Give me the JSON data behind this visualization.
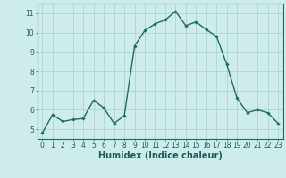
{
  "x": [
    0,
    1,
    2,
    3,
    4,
    5,
    6,
    7,
    8,
    9,
    10,
    11,
    12,
    13,
    14,
    15,
    16,
    17,
    18,
    19,
    20,
    21,
    22,
    23
  ],
  "y": [
    4.8,
    5.75,
    5.4,
    5.5,
    5.55,
    6.5,
    6.1,
    5.3,
    5.7,
    9.3,
    10.1,
    10.45,
    10.65,
    11.1,
    10.35,
    10.55,
    10.15,
    9.8,
    8.35,
    6.6,
    5.85,
    6.0,
    5.85,
    5.3
  ],
  "line_color": "#1a6b6b",
  "marker": "D",
  "markersize": 1.8,
  "linewidth": 1.0,
  "bg_color": "#ceecea",
  "grid_color": "#aed4d0",
  "xlabel": "Humidex (Indice chaleur)",
  "ylim": [
    4.5,
    11.5
  ],
  "xlim": [
    -0.5,
    23.5
  ],
  "yticks": [
    5,
    6,
    7,
    8,
    9,
    10,
    11
  ],
  "xticks": [
    0,
    1,
    2,
    3,
    4,
    5,
    6,
    7,
    8,
    9,
    10,
    11,
    12,
    13,
    14,
    15,
    16,
    17,
    18,
    19,
    20,
    21,
    22,
    23
  ],
  "tick_fontsize": 5.5,
  "xlabel_fontsize": 7.0,
  "tick_color": "#1a5a5a",
  "spine_color": "#1a6b6b"
}
